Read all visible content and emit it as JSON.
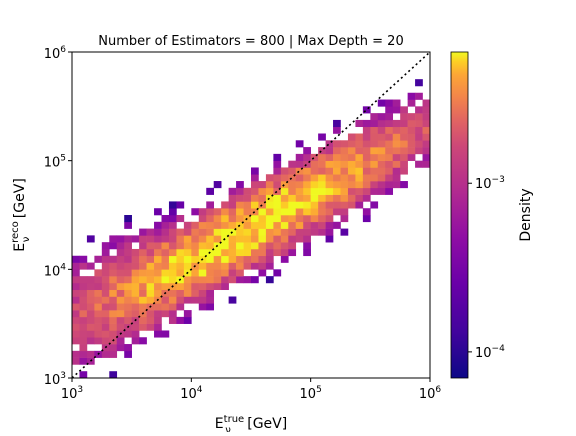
{
  "chart_data": {
    "type": "heatmap",
    "title": "Number of Estimators = 800 | Max Depth = 20",
    "xlabel": {
      "base": "E",
      "sub": "ν",
      "sup": "true",
      "unit": "[GeV]"
    },
    "ylabel": {
      "base": "E",
      "sub": "ν",
      "sup": "reco",
      "unit": "[GeV]"
    },
    "x_scale": "log",
    "y_scale": "log",
    "xlim": [
      1000,
      1000000
    ],
    "ylim": [
      1000,
      1000000
    ],
    "x_ticks": [
      {
        "value": 1000,
        "base": "10",
        "exp": "3"
      },
      {
        "value": 10000,
        "base": "10",
        "exp": "4"
      },
      {
        "value": 100000,
        "base": "10",
        "exp": "5"
      },
      {
        "value": 1000000,
        "base": "10",
        "exp": "6"
      }
    ],
    "y_ticks": [
      {
        "value": 1000,
        "base": "10",
        "exp": "3"
      },
      {
        "value": 10000,
        "base": "10",
        "exp": "4"
      },
      {
        "value": 100000,
        "base": "10",
        "exp": "5"
      },
      {
        "value": 1000000,
        "base": "10",
        "exp": "6"
      }
    ],
    "bins_per_decade": 16,
    "colormap": "plasma",
    "reference_line": {
      "style": "dotted",
      "color": "#000000",
      "equation": "y = x"
    },
    "colorbar": {
      "label": "Density",
      "scale": "log",
      "range": [
        7e-05,
        0.006
      ],
      "ticks": [
        {
          "value": 0.001,
          "base": "10",
          "exp": "−3"
        },
        {
          "value": 0.0001,
          "base": "10",
          "exp": "−4"
        }
      ]
    },
    "distribution": {
      "description_values_in_log10_GeV": true,
      "ridge_center": 4.3,
      "ridge_spread_along_diagonal": 0.55,
      "offset_from_diagonal_at_center": -0.05,
      "offset_slope": -0.35,
      "spread_across_diagonal": 0.16,
      "peak_density": 0.006,
      "min_density": 7e-05
    }
  }
}
